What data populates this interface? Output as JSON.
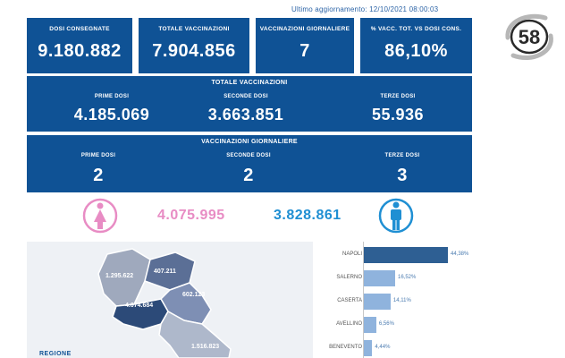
{
  "header": {
    "last_update": "Ultimo aggiornamento: 12/10/2021 08:00:03"
  },
  "logo": {
    "text": "58"
  },
  "summary": [
    {
      "label": "DOSI  CONSEGNATE",
      "value": "9.180.882"
    },
    {
      "label": "TOTALE VACCINAZIONI",
      "value": "7.904.856"
    },
    {
      "label": "VACCINAZIONI GIORNALIERE",
      "value": "7"
    },
    {
      "label": "% VACC. TOT. vs DOSI CONS.",
      "value": "86,10%"
    }
  ],
  "totale": {
    "title": "TOTALE VACCINAZIONI",
    "prime_label": "PRIME DOSI",
    "prime_value": "4.185.069",
    "seconde_label": "SECONDE DOSI",
    "seconde_value": "3.663.851",
    "terze_label": "TERZE DOSI",
    "terze_value": "55.936"
  },
  "giornaliere": {
    "title": "VACCINAZIONI GIORNALIERE",
    "prime_label": "PRIME DOSI",
    "prime_value": "2",
    "seconde_label": "SECONDE DOSI",
    "seconde_value": "2",
    "terze_label": "TERZE DOSI",
    "terze_value": "3"
  },
  "gender": {
    "female_value": "4.075.995",
    "male_value": "3.828.861",
    "female_color": "#e88cc4",
    "male_color": "#1f8fd3"
  },
  "map": {
    "region_label": "REGIONE",
    "labels": {
      "caserta": "1.295.622",
      "benevento": "407.211",
      "avellino": "602.123",
      "napoli": "4.074.684",
      "salerno": "1.516.823"
    }
  },
  "provinces": [
    {
      "name": "NAPOLI",
      "pct": "44,38%",
      "share": 44.38
    },
    {
      "name": "SALERNO",
      "pct": "16,52%",
      "share": 16.52
    },
    {
      "name": "CASERTA",
      "pct": "14,11%",
      "share": 14.11
    },
    {
      "name": "AVELLINO",
      "pct": "6,56%",
      "share": 6.56
    },
    {
      "name": "BENEVENTO",
      "pct": "4,44%",
      "share": 4.44
    }
  ],
  "colors": {
    "primary": "#0f5295",
    "bar_top": "#2e5f93",
    "bar_other": "#8fb3dd"
  }
}
